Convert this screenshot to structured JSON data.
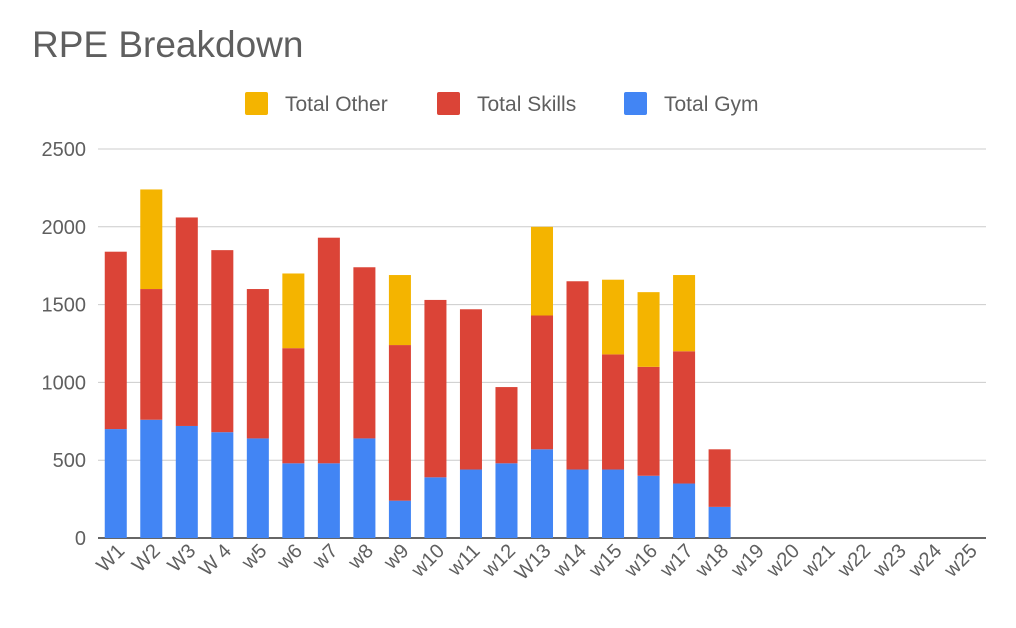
{
  "chart_data": {
    "type": "bar",
    "stacked": true,
    "title": "RPE Breakdown",
    "xlabel": "",
    "ylabel": "",
    "ylim": [
      0,
      2500
    ],
    "yticks": [
      0,
      500,
      1000,
      1500,
      2000,
      2500
    ],
    "grid": true,
    "legend_position": "top",
    "categories": [
      "W1",
      "W2",
      "W3",
      "W 4",
      "w5",
      "w6",
      "w7",
      "w8",
      "w9",
      "w10",
      "w11",
      "w12",
      "W13",
      "w14",
      "w15",
      "w16",
      "w17",
      "w18",
      "w19",
      "w20",
      "w21",
      "w22",
      "w23",
      "w24",
      "w25"
    ],
    "series": [
      {
        "name": "Total Gym",
        "color": "#4285f4",
        "values": [
          700,
          760,
          720,
          680,
          640,
          480,
          480,
          640,
          240,
          390,
          440,
          480,
          570,
          440,
          440,
          400,
          350,
          200,
          0,
          0,
          0,
          0,
          0,
          0,
          0
        ]
      },
      {
        "name": "Total Skills",
        "color": "#db4437",
        "values": [
          1140,
          840,
          1340,
          1170,
          960,
          740,
          1450,
          1100,
          1000,
          1140,
          1030,
          490,
          860,
          1210,
          740,
          700,
          850,
          370,
          0,
          0,
          0,
          0,
          0,
          0,
          0
        ]
      },
      {
        "name": "Total Other",
        "color": "#f4b400",
        "values": [
          0,
          640,
          0,
          0,
          0,
          480,
          0,
          0,
          450,
          0,
          0,
          0,
          570,
          0,
          480,
          480,
          490,
          0,
          0,
          0,
          0,
          0,
          0,
          0,
          0
        ]
      }
    ],
    "legend_order": [
      "Total Other",
      "Total Skills",
      "Total Gym"
    ]
  }
}
